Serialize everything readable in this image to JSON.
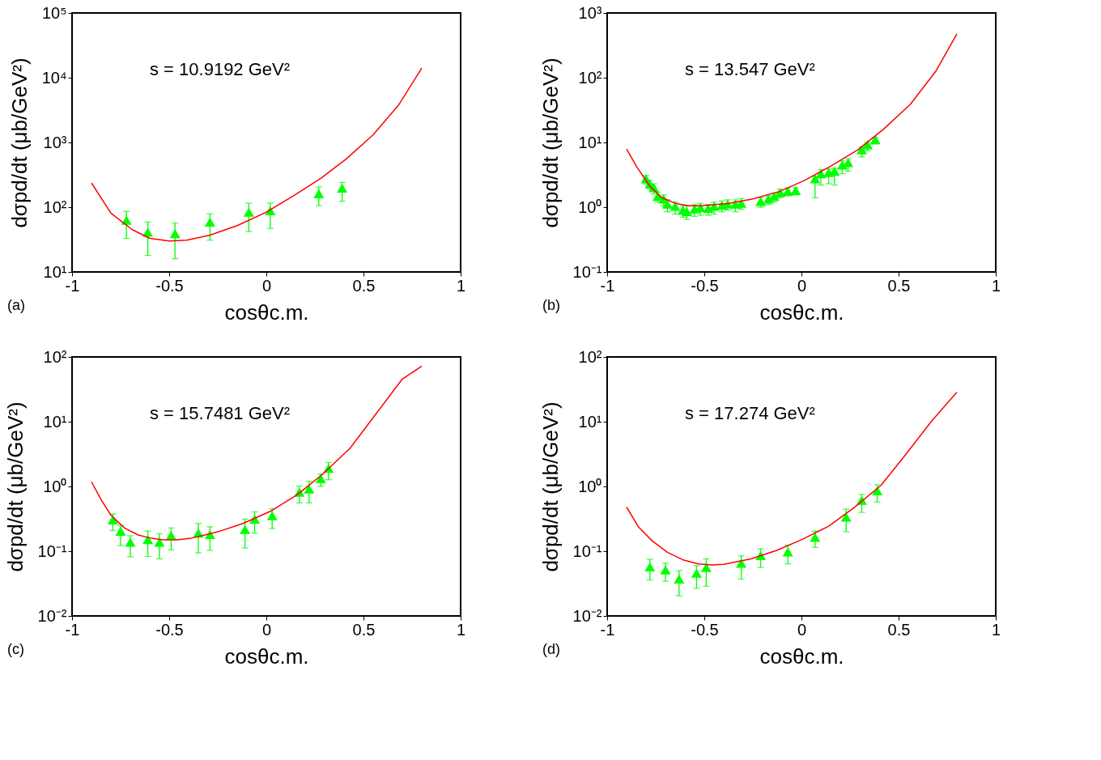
{
  "chart_data": [
    {
      "type": "scatter",
      "log": true,
      "xlabel": "cosθc.m.",
      "ylabel": "dσpd/dt (μb/GeV²)",
      "xlim": [
        -1,
        1
      ],
      "xticks": [
        -1,
        -0.5,
        0,
        0.5,
        1
      ],
      "ylim": [
        10,
        100000
      ],
      "yticks": [
        {
          "value": 10,
          "label": "10¹"
        },
        {
          "value": 100,
          "label": "10²"
        },
        {
          "value": 1000,
          "label": "10³"
        },
        {
          "value": 10000,
          "label": "10⁴"
        },
        {
          "value": 100000,
          "label": "10⁵"
        }
      ],
      "annotations": [
        "s = 10.9192 GeV²",
        "(a)"
      ],
      "series": [
        {
          "type": "line",
          "color": "#ff0000",
          "x": [
            -0.9,
            -0.8,
            -0.69,
            -0.6,
            -0.5,
            -0.41,
            -0.29,
            -0.15,
            0.0,
            0.14,
            0.28,
            0.41,
            0.55,
            0.68,
            0.8
          ],
          "values": [
            237,
            81,
            45,
            33,
            30,
            31,
            37,
            52,
            84,
            150,
            279,
            553,
            1315,
            3750,
            14100
          ]
        },
        {
          "color": "#00ff00",
          "marker": "triangle",
          "x": [
            -0.72,
            -0.61,
            -0.47,
            -0.29,
            -0.09,
            0.02,
            0.27,
            0.39
          ],
          "values": [
            63,
            41,
            39,
            59,
            84,
            88,
            162,
            197
          ],
          "errors": [
            [
              33,
              86
            ],
            [
              18,
              59
            ],
            [
              16,
              57
            ],
            [
              31,
              79
            ],
            [
              42,
              115
            ],
            [
              47,
              116
            ],
            [
              106,
              205
            ],
            [
              123,
              241
            ]
          ]
        }
      ]
    },
    {
      "type": "scatter",
      "log": true,
      "xlabel": "cosθc.m.",
      "ylabel": "dσpd/dt (μb/GeV²)",
      "xlim": [
        -1,
        1
      ],
      "xticks": [
        -1,
        -0.5,
        0,
        0.5,
        1
      ],
      "ylim": [
        0.1,
        1000
      ],
      "yticks": [
        {
          "value": 0.1,
          "label": "10⁻¹"
        },
        {
          "value": 1,
          "label": "10⁰"
        },
        {
          "value": 10,
          "label": "10¹"
        },
        {
          "value": 100,
          "label": "10²"
        },
        {
          "value": 1000,
          "label": "10³"
        }
      ],
      "annotations": [
        "s = 13.547 GeV²",
        "(b)"
      ],
      "series": [
        {
          "type": "line",
          "color": "#ff0000",
          "x": [
            -0.9,
            -0.85,
            -0.78,
            -0.72,
            -0.65,
            -0.58,
            -0.52,
            -0.38,
            -0.25,
            -0.11,
            0.02,
            0.15,
            0.29,
            0.42,
            0.56,
            0.69,
            0.8
          ],
          "values": [
            7.9,
            4.3,
            2.1,
            1.41,
            1.15,
            1.05,
            1.05,
            1.14,
            1.34,
            1.76,
            2.63,
            4.3,
            7.7,
            15.8,
            38.7,
            124,
            475
          ]
        },
        {
          "color": "#00ff00",
          "marker": "triangle",
          "x": [
            -0.8,
            -0.78,
            -0.76,
            -0.74,
            -0.71,
            -0.69,
            -0.65,
            -0.61,
            -0.59,
            -0.55,
            -0.52,
            -0.48,
            -0.45,
            -0.41,
            -0.38,
            -0.34,
            -0.31,
            -0.21,
            -0.17,
            -0.14,
            -0.11,
            -0.07,
            -0.03,
            0.07,
            0.1,
            0.14,
            0.17,
            0.21,
            0.24,
            0.31,
            0.34,
            0.38
          ],
          "values": [
            2.75,
            2.3,
            2.01,
            1.47,
            1.34,
            1.12,
            1.03,
            0.9,
            0.86,
            0.94,
            0.98,
            0.96,
            1.03,
            1.07,
            1.12,
            1.12,
            1.15,
            1.23,
            1.34,
            1.47,
            1.68,
            1.76,
            1.81,
            2.75,
            3.29,
            3.44,
            3.6,
            4.5,
            4.9,
            7.7,
            9.2,
            11
          ],
          "errors": [
            [
              2.3,
              3.1
            ],
            [
              1.9,
              2.6
            ],
            [
              1.6,
              2.3
            ],
            [
              1.2,
              1.7
            ],
            [
              1.05,
              1.55
            ],
            [
              0.85,
              1.3
            ],
            [
              0.78,
              1.2
            ],
            [
              0.7,
              1.05
            ],
            [
              0.65,
              1.05
            ],
            [
              0.72,
              1.1
            ],
            [
              0.75,
              1.15
            ],
            [
              0.75,
              1.1
            ],
            [
              0.78,
              1.2
            ],
            [
              0.85,
              1.25
            ],
            [
              0.9,
              1.3
            ],
            [
              0.85,
              1.3
            ],
            [
              0.93,
              1.36
            ],
            [
              1.0,
              1.4
            ],
            [
              1.1,
              1.5
            ],
            [
              1.2,
              1.65
            ],
            [
              1.4,
              1.9
            ],
            [
              1.5,
              2.0
            ],
            [
              1.55,
              2.0
            ],
            [
              1.4,
              3.0
            ],
            [
              2.2,
              3.8
            ],
            [
              2.3,
              3.9
            ],
            [
              2.2,
              4.0
            ],
            [
              3.3,
              5.2
            ],
            [
              3.6,
              5.6
            ],
            [
              6.0,
              8.5
            ],
            [
              7.5,
              10
            ],
            [
              9.5,
              12
            ]
          ]
        }
      ]
    },
    {
      "type": "scatter",
      "log": true,
      "xlabel": "cosθc.m.",
      "ylabel": "dσpd/dt (μb/GeV²)",
      "xlim": [
        -1,
        1
      ],
      "xticks": [
        -1,
        -0.5,
        0,
        0.5,
        1
      ],
      "ylim": [
        0.01,
        100
      ],
      "yticks": [
        {
          "value": 0.01,
          "label": "10⁻²"
        },
        {
          "value": 0.1,
          "label": "10⁻¹"
        },
        {
          "value": 1,
          "label": "10⁰"
        },
        {
          "value": 10,
          "label": "10¹"
        },
        {
          "value": 100,
          "label": "10²"
        }
      ],
      "annotations": [
        "s = 15.7481 GeV²",
        "(c)"
      ],
      "series": [
        {
          "type": "line",
          "color": "#ff0000",
          "x": [
            -0.9,
            -0.85,
            -0.8,
            -0.73,
            -0.66,
            -0.59,
            -0.53,
            -0.46,
            -0.39,
            -0.25,
            -0.12,
            0.02,
            0.16,
            0.29,
            0.43,
            0.56,
            0.7,
            0.8
          ],
          "values": [
            1.18,
            0.62,
            0.36,
            0.228,
            0.178,
            0.158,
            0.15,
            0.15,
            0.158,
            0.199,
            0.268,
            0.412,
            0.746,
            1.55,
            3.87,
            12.7,
            45.6,
            72
          ]
        },
        {
          "color": "#00ff00",
          "marker": "triangle",
          "x": [
            -0.79,
            -0.75,
            -0.7,
            -0.61,
            -0.55,
            -0.49,
            -0.35,
            -0.29,
            -0.11,
            -0.06,
            0.03,
            0.17,
            0.22,
            0.28,
            0.32
          ],
          "values": [
            0.305,
            0.204,
            0.138,
            0.151,
            0.138,
            0.176,
            0.19,
            0.181,
            0.217,
            0.313,
            0.353,
            0.818,
            0.912,
            1.32,
            1.9
          ],
          "errors": [
            [
              0.208,
              0.376
            ],
            [
              0.122,
              0.249
            ],
            [
              0.082,
              0.173
            ],
            [
              0.083,
              0.204
            ],
            [
              0.076,
              0.186
            ],
            [
              0.105,
              0.228
            ],
            [
              0.094,
              0.268
            ],
            [
              0.103,
              0.238
            ],
            [
              0.112,
              0.313
            ],
            [
              0.19,
              0.405
            ],
            [
              0.224,
              0.452
            ],
            [
              0.557,
              1.01
            ],
            [
              0.557,
              1.2
            ],
            [
              1.0,
              1.55
            ],
            [
              1.27,
              2.34
            ]
          ]
        }
      ]
    },
    {
      "type": "scatter",
      "log": true,
      "xlabel": "cosθc.m.",
      "ylabel": "dσpd/dt (μb/GeV²)",
      "xlim": [
        -1,
        1
      ],
      "xticks": [
        -1,
        -0.5,
        0,
        0.5,
        1
      ],
      "ylim": [
        0.01,
        100
      ],
      "yticks": [
        {
          "value": 0.01,
          "label": "10⁻²"
        },
        {
          "value": 0.1,
          "label": "10⁻¹"
        },
        {
          "value": 1,
          "label": "10⁰"
        },
        {
          "value": 10,
          "label": "10¹"
        },
        {
          "value": 100,
          "label": "10²"
        }
      ],
      "annotations": [
        "s = 17.274 GeV²",
        "(d)"
      ],
      "series": [
        {
          "type": "line",
          "color": "#ff0000",
          "x": [
            -0.9,
            -0.84,
            -0.77,
            -0.69,
            -0.61,
            -0.53,
            -0.46,
            -0.4,
            -0.26,
            -0.13,
            0.0,
            0.14,
            0.27,
            0.41,
            0.54,
            0.67,
            0.8
          ],
          "values": [
            0.48,
            0.239,
            0.146,
            0.096,
            0.0735,
            0.0637,
            0.0614,
            0.0625,
            0.0762,
            0.102,
            0.15,
            0.243,
            0.468,
            1.045,
            3.2,
            10.2,
            28.6
          ]
        },
        {
          "color": "#00ff00",
          "marker": "triangle",
          "x": [
            -0.78,
            -0.7,
            -0.63,
            -0.54,
            -0.49,
            -0.31,
            -0.21,
            -0.07,
            0.07,
            0.23,
            0.31,
            0.39
          ],
          "values": [
            0.0572,
            0.0514,
            0.0372,
            0.0457,
            0.0562,
            0.0654,
            0.0855,
            0.0977,
            0.164,
            0.336,
            0.611,
            0.859
          ],
          "errors": [
            [
              0.0359,
              0.0748
            ],
            [
              0.0343,
              0.0654
            ],
            [
              0.0205,
              0.05
            ],
            [
              0.0267,
              0.0598
            ],
            [
              0.0287,
              0.0762
            ],
            [
              0.0372,
              0.0848
            ],
            [
              0.0562,
              0.109
            ],
            [
              0.0637,
              0.124
            ],
            [
              0.114,
              0.204
            ],
            [
              0.2,
              0.447
            ],
            [
              0.398,
              0.751
            ],
            [
              0.574,
              1.06
            ]
          ]
        }
      ]
    }
  ]
}
